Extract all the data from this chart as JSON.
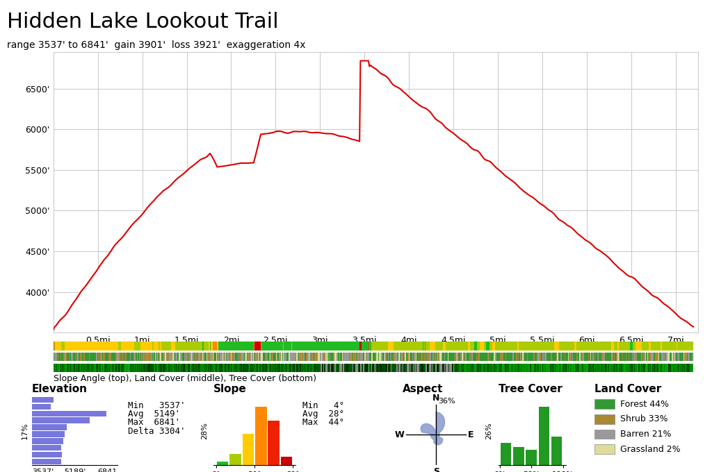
{
  "title": "Hidden Lake Lookout Trail",
  "subtitle": "range 3537' to 6841'  gain 3901'  loss 3921'  exaggeration 4x",
  "y_min": 3500,
  "y_max": 6950,
  "x_min": 0,
  "x_max": 7.25,
  "x_ticks": [
    0.5,
    1.0,
    1.5,
    2.0,
    2.5,
    3.0,
    3.5,
    4.0,
    4.5,
    5.0,
    5.5,
    6.0,
    6.5,
    7.0
  ],
  "x_tick_labels": [
    "0.5mi",
    "1mi",
    "1.5mi",
    "2mi",
    "2.5mi",
    "3mi",
    "3.5mi",
    "4mi",
    "4.5mi",
    "5mi",
    "5.5mi",
    "6mi",
    "6.5mi",
    "7mi"
  ],
  "y_ticks": [
    4000,
    4500,
    5000,
    5500,
    6000,
    6500
  ],
  "y_tick_labels": [
    "4000'",
    "4500'",
    "5000'",
    "5500'",
    "6000'",
    "6500'"
  ],
  "profile_color": "#dd0000",
  "background_color": "#ffffff",
  "grid_color": "#cccccc",
  "label_below": "Slope Angle (top), Land Cover (middle), Tree Cover (bottom)",
  "elevation_hist_color": "#7777dd",
  "elevation_min": 3537,
  "elevation_avg": 5149,
  "elevation_max": 6841,
  "elevation_delta": 3304,
  "elevation_hist_pct": "17%",
  "slope_min": 4,
  "slope_avg": 28,
  "slope_max": 44,
  "slope_hist_pct": "28%",
  "slope_bin_centers": [
    5,
    15,
    25,
    35,
    45,
    55
  ],
  "slope_counts": [
    8,
    25,
    70,
    130,
    100,
    18
  ],
  "slope_bar_colors": [
    "#22bb22",
    "#aacc00",
    "#ffcc00",
    "#ff8800",
    "#ee2200",
    "#cc0000"
  ],
  "tree_cover_pct": "26%",
  "tree_bin_centers": [
    10,
    30,
    50,
    70,
    90
  ],
  "tree_counts": [
    22,
    18,
    15,
    58,
    28
  ],
  "tree_color": "#229922",
  "land_cover": [
    "Forest 44%",
    "Shrub 33%",
    "Barren 21%",
    "Grassland 2%"
  ],
  "land_cover_colors": [
    "#339933",
    "#aa8833",
    "#999999",
    "#dddd99"
  ],
  "aspect_pct": "36%"
}
